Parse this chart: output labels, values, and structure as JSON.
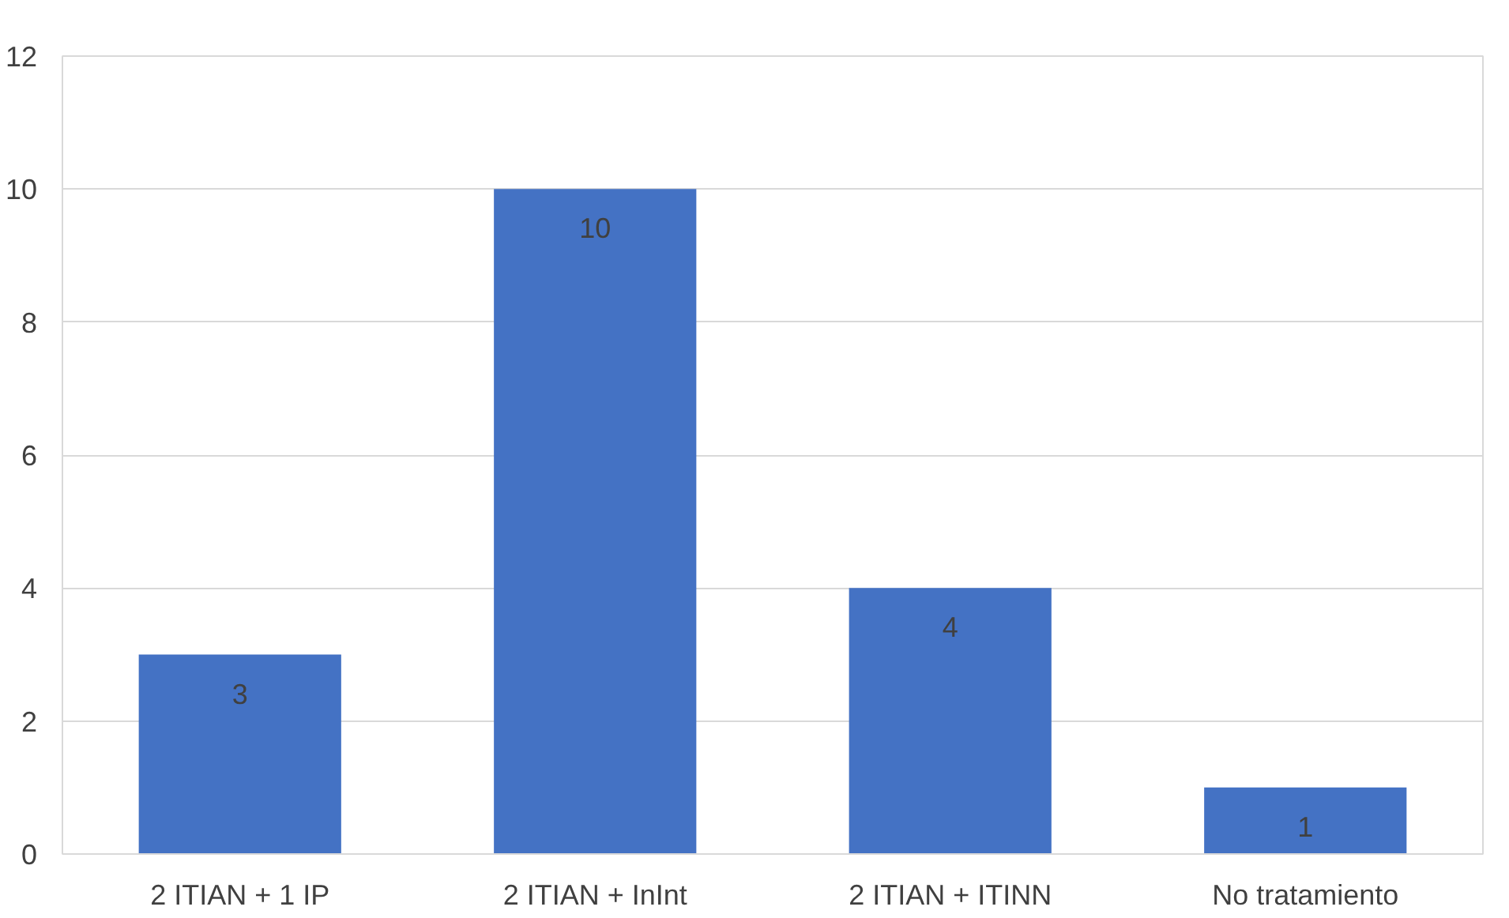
{
  "chart_data": {
    "type": "bar",
    "categories": [
      "2 ITIAN + 1 IP",
      "2 ITIAN + InInt",
      "2 ITIAN + ITINN",
      "No tratamiento"
    ],
    "values": [
      3,
      10,
      4,
      1
    ],
    "color": "#4472c4",
    "ylim": [
      0,
      12
    ],
    "yticks": [
      0,
      2,
      4,
      6,
      8,
      10,
      12
    ],
    "grid": "y",
    "data_labels": true
  }
}
